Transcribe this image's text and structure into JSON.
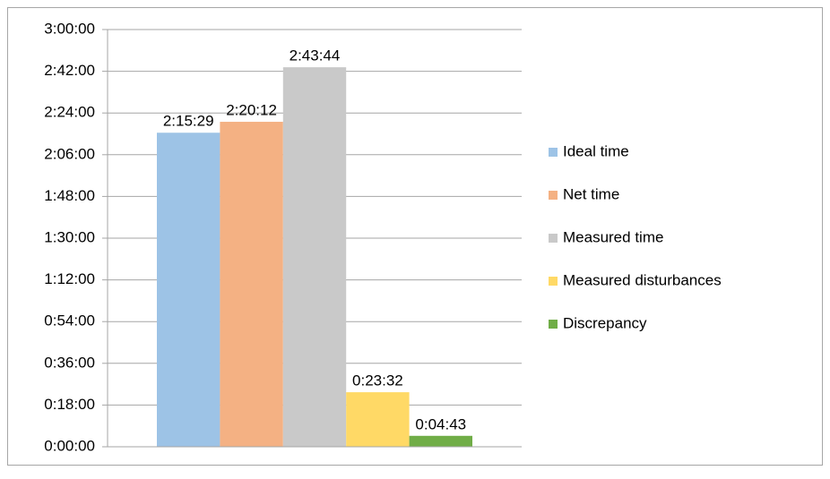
{
  "chart_data": {
    "type": "bar",
    "categories": [
      null
    ],
    "series": [
      {
        "name": "Ideal time",
        "color": "#9dc3e6",
        "values": [
          8129
        ],
        "value_labels": [
          "2:15:29"
        ]
      },
      {
        "name": "Net time",
        "color": "#f4b183",
        "values": [
          8412
        ],
        "value_labels": [
          "2:20:12"
        ]
      },
      {
        "name": "Measured time",
        "color": "#c9c9c9",
        "values": [
          9824
        ],
        "value_labels": [
          "2:43:44"
        ]
      },
      {
        "name": "Measured disturbances",
        "color": "#ffd966",
        "values": [
          1412
        ],
        "value_labels": [
          "0:23:32"
        ]
      },
      {
        "name": "Discrepancy",
        "color": "#70ad47",
        "values": [
          283
        ],
        "value_labels": [
          "0:04:43"
        ]
      }
    ],
    "ylim": [
      0,
      10800
    ],
    "yticks": [
      {
        "value": 0,
        "label": "0:00:00"
      },
      {
        "value": 1080,
        "label": "0:18:00"
      },
      {
        "value": 2160,
        "label": "0:36:00"
      },
      {
        "value": 3240,
        "label": "0:54:00"
      },
      {
        "value": 4320,
        "label": "1:12:00"
      },
      {
        "value": 5400,
        "label": "1:30:00"
      },
      {
        "value": 6480,
        "label": "1:48:00"
      },
      {
        "value": 7560,
        "label": "2:06:00"
      },
      {
        "value": 8640,
        "label": "2:24:00"
      },
      {
        "value": 9720,
        "label": "2:42:00"
      },
      {
        "value": 10800,
        "label": "3:00:00"
      }
    ],
    "grid": true,
    "legend": "right"
  }
}
